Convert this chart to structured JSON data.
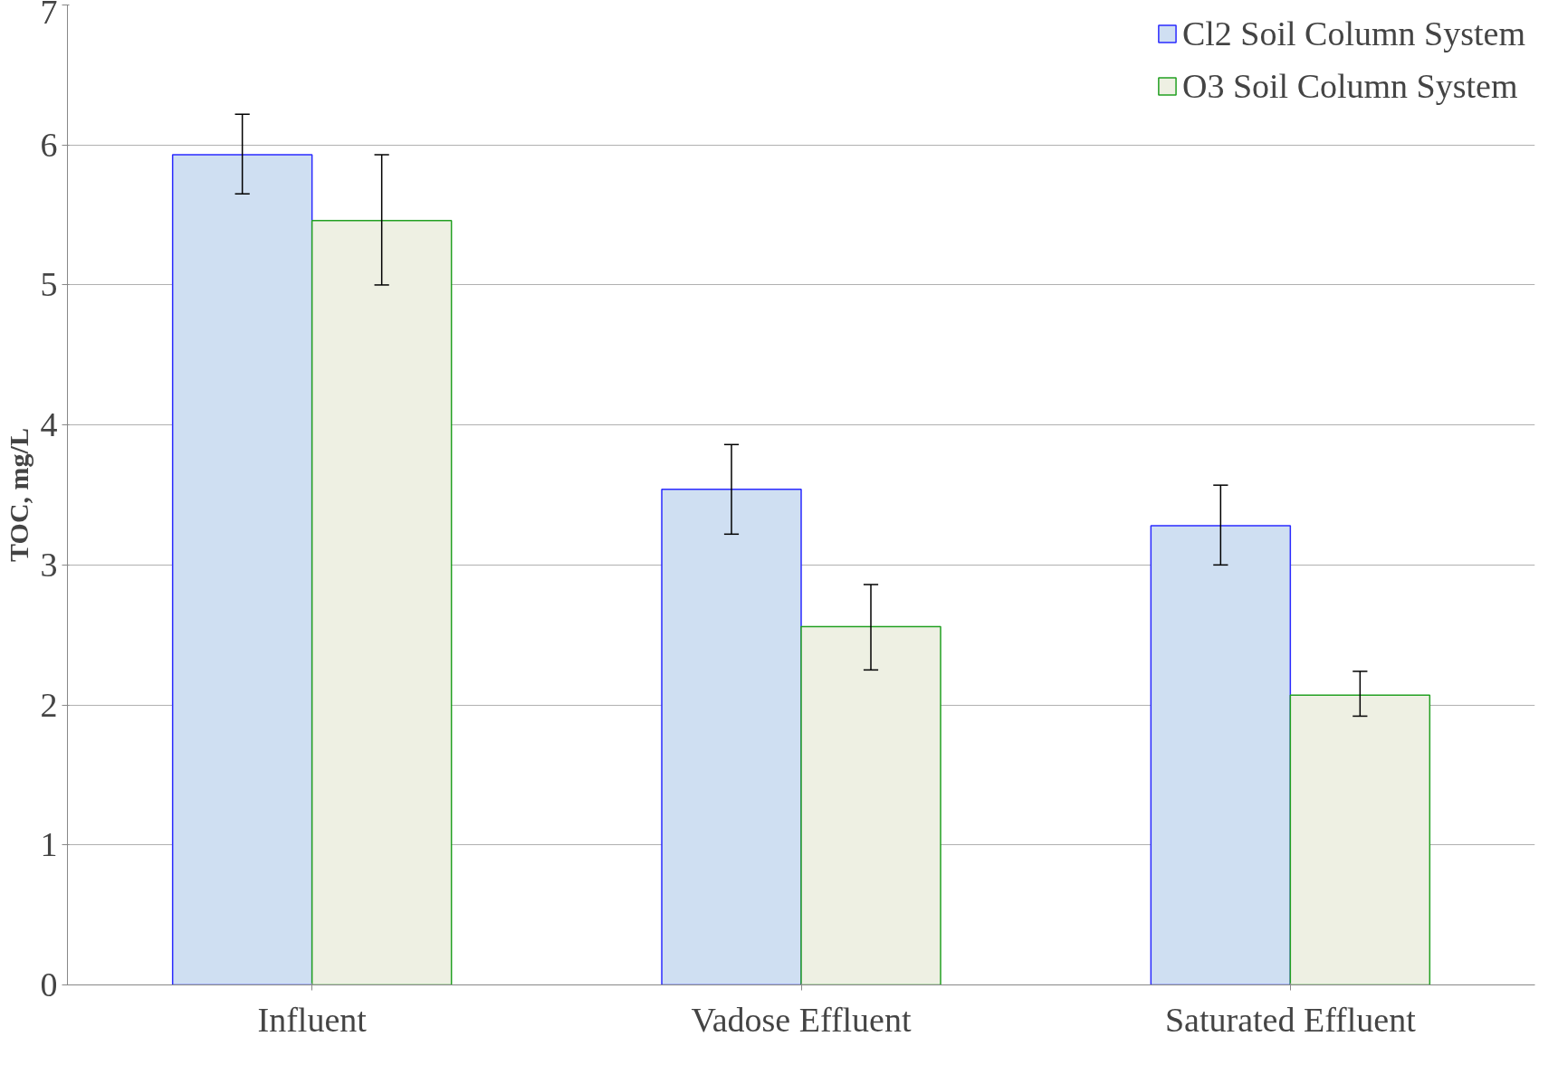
{
  "chart_data": {
    "type": "bar",
    "ylabel": "TOC, mg/L",
    "categories": [
      "Influent",
      "Vadose Effluent",
      "Saturated Effluent"
    ],
    "series": [
      {
        "name": "Cl2 Soil Column System",
        "color": "#cfdff2",
        "values": [
          5.93,
          3.54,
          3.28
        ],
        "errors": [
          [
            5.65,
            6.22
          ],
          [
            3.22,
            3.86
          ],
          [
            3.0,
            3.57
          ]
        ]
      },
      {
        "name": "O3 Soil Column System",
        "color": "#eef0e3",
        "values": [
          5.46,
          2.56,
          2.07
        ],
        "errors": [
          [
            5.0,
            5.93
          ],
          [
            2.25,
            2.86
          ],
          [
            1.92,
            2.24
          ]
        ]
      }
    ],
    "ylim": [
      0,
      7
    ],
    "yticks": [
      0,
      1,
      2,
      3,
      4,
      5,
      6,
      7
    ],
    "grid": "y",
    "legend": "top right"
  }
}
